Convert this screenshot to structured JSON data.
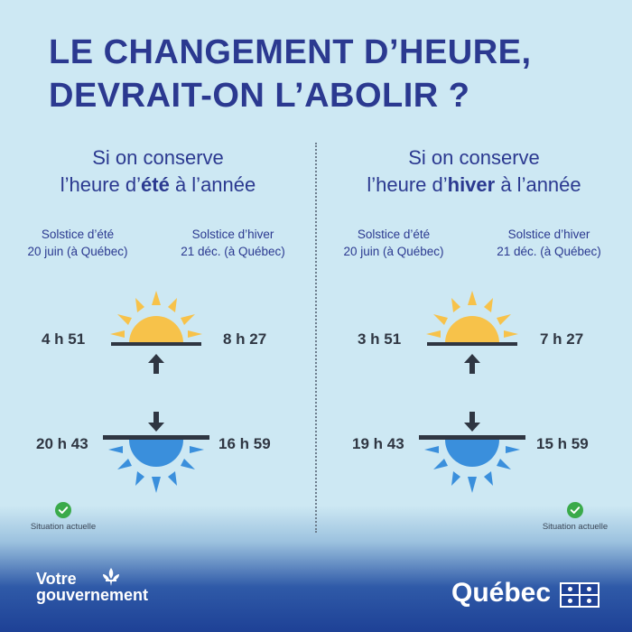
{
  "title": {
    "line1": "LE CHANGEMENT D’HEURE,",
    "line2": "DEVRAIT-ON L’ABOLIR ?"
  },
  "panels": [
    {
      "heading_line1": "Si on conserve",
      "heading_prefix": "l’heure d’",
      "heading_bold": "été",
      "heading_suffix": " à l’année",
      "summer_label_line1": "Solstice d’été",
      "summer_label_line2": "20 juin (à Québec)",
      "winter_label_line1": "Solstice d’hiver",
      "winter_label_line2": "21 déc. (à Québec)",
      "sunrise_summer": "4 h 51",
      "sunrise_winter": "8 h 27",
      "sunset_summer": "20 h 43",
      "sunset_winter": "16 h 59",
      "status": "Situation actuelle"
    },
    {
      "heading_line1": "Si on conserve",
      "heading_prefix": "l’heure d’",
      "heading_bold": "hiver",
      "heading_suffix": " à l’année",
      "summer_label_line1": "Solstice d’été",
      "summer_label_line2": "20 juin (à Québec)",
      "winter_label_line1": "Solstice d’hiver",
      "winter_label_line2": "21 déc. (à Québec)",
      "sunrise_summer": "3 h 51",
      "sunrise_winter": "7 h 27",
      "sunset_summer": "19 h 43",
      "sunset_winter": "15 h 59",
      "status": "Situation actuelle"
    }
  ],
  "footer": {
    "left_line1": "Votre",
    "left_line2": "gouvernement",
    "right": "Québec"
  },
  "colors": {
    "title": "#2b3990",
    "sun": "#f7c24a",
    "moon": "#3a8fdc",
    "check": "#3aaa4a"
  },
  "icons": [
    "sun-icon",
    "up-arrow-icon",
    "down-arrow-icon",
    "setting-sun-icon",
    "check-icon",
    "fleur-de-lis-icon",
    "quebec-flag-icon"
  ]
}
